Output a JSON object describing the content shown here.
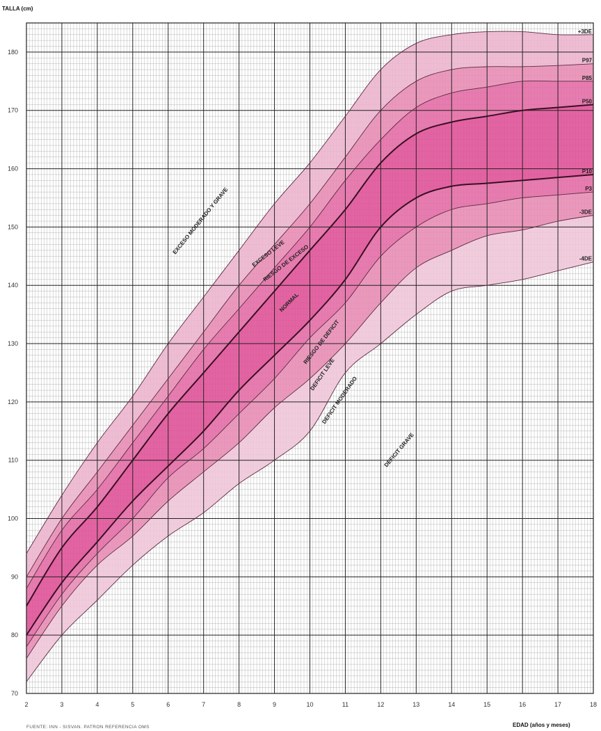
{
  "chart_data": {
    "type": "line",
    "y_title": "TALLA (cm)",
    "x_title": "EDAD (años y meses)",
    "source": "FUENTE: INN - SISVAN. PATRON REFERENCIA OMS",
    "xlim": [
      2,
      18
    ],
    "ylim": [
      70,
      185
    ],
    "x_ticks": [
      "2",
      "3",
      "4",
      "5",
      "6",
      "7",
      "8",
      "9",
      "10",
      "11",
      "12",
      "13",
      "14",
      "15",
      "16",
      "17",
      "18"
    ],
    "y_ticks": [
      "70",
      "80",
      "90",
      "100",
      "110",
      "120",
      "130",
      "140",
      "150",
      "160",
      "170",
      "180"
    ],
    "x_tick_values": [
      2,
      3,
      4,
      5,
      6,
      7,
      8,
      9,
      10,
      11,
      12,
      13,
      14,
      15,
      16,
      17,
      18
    ],
    "y_tick_values": [
      70,
      80,
      90,
      100,
      110,
      120,
      130,
      140,
      150,
      160,
      170,
      180
    ],
    "x": [
      2,
      3,
      4,
      5,
      6,
      7,
      8,
      9,
      10,
      11,
      12,
      13,
      14,
      15,
      16,
      17,
      18
    ],
    "series": [
      {
        "name": "+3DE",
        "values": [
          94,
          104,
          113,
          121,
          130,
          138,
          146,
          154,
          161,
          169,
          177,
          181.5,
          183,
          183.5,
          183.5,
          183,
          183
        ]
      },
      {
        "name": "P97",
        "values": [
          90,
          100,
          108,
          116,
          124,
          132,
          140,
          147,
          154,
          162,
          170,
          175,
          177,
          177.5,
          177.5,
          177.7,
          178
        ]
      },
      {
        "name": "P85",
        "values": [
          88,
          98,
          105,
          113,
          121,
          129,
          136,
          143,
          150,
          158,
          165,
          170.5,
          173,
          174,
          175,
          175,
          175
        ]
      },
      {
        "name": "P50",
        "values": [
          85,
          95,
          102,
          110,
          118,
          125,
          132,
          139,
          146,
          153,
          161,
          166,
          168,
          169,
          170,
          170.5,
          171
        ]
      },
      {
        "name": "P10",
        "values": [
          80,
          89,
          96,
          103,
          109,
          115,
          122,
          128,
          134,
          141,
          150,
          155,
          157,
          157.5,
          158,
          158.5,
          159
        ]
      },
      {
        "name": "P3",
        "values": [
          78,
          87,
          94,
          100,
          107,
          112,
          118,
          124,
          131,
          137,
          145,
          150,
          153,
          154,
          155,
          155.5,
          156
        ]
      },
      {
        "name": "-3DE",
        "values": [
          76,
          85,
          92,
          97,
          103,
          108,
          113,
          119,
          124,
          130,
          137,
          143,
          146,
          148.5,
          149.5,
          151,
          152
        ]
      },
      {
        "name": "-4DE",
        "values": [
          72,
          80,
          86,
          92,
          97,
          101,
          106,
          110,
          115,
          125,
          130,
          135,
          139,
          140,
          141,
          142.5,
          144
        ]
      }
    ],
    "zone_labels": [
      "EXCESO MODERADO Y GRAVE",
      "EXCESO LEVE",
      "RIESGO DE EXCESO",
      "NORMAL",
      "RIESGO DE DEFICIT",
      "DEFICIT LEVE",
      "DEFICIT MODERADO",
      "DEFICIT GRAVE"
    ],
    "colors": {
      "exceso_mod_grave": "#ecb4cd",
      "exceso_leve": "#e78bb4",
      "riesgo_exceso": "#e36aa4",
      "normal": "#df4f95",
      "riesgo_deficit": "#e36aa4",
      "deficit_leve": "#e78bb4",
      "deficit_moderado": "#efc5d8",
      "grid_major": "#222222",
      "grid_minor": "#9a9a9a"
    }
  }
}
